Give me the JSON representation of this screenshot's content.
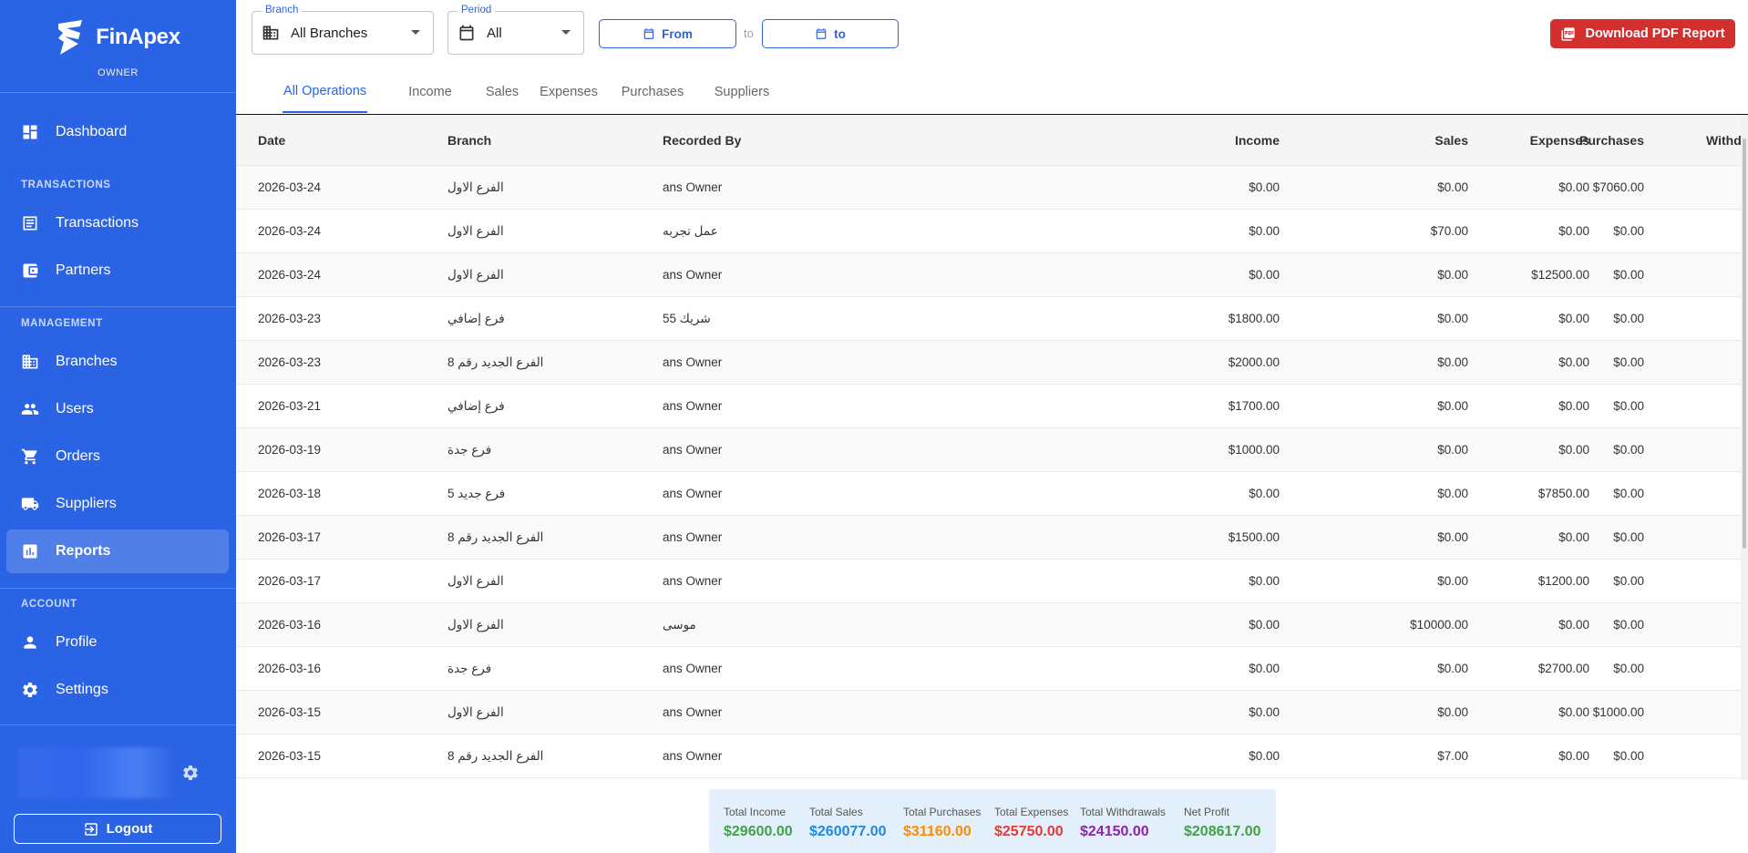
{
  "app": {
    "name": "FinApex",
    "role": "OWNER"
  },
  "sidebar": {
    "dashboard": "Dashboard",
    "section_transactions": "TRANSACTIONS",
    "transactions": "Transactions",
    "partners": "Partners",
    "section_management": "MANAGEMENT",
    "branches": "Branches",
    "users": "Users",
    "orders": "Orders",
    "suppliers": "Suppliers",
    "reports": "Reports",
    "section_account": "ACCOUNT",
    "profile": "Profile",
    "settings": "Settings",
    "logout": "Logout"
  },
  "filters": {
    "branch_label": "Branch",
    "branch_value": "All Branches",
    "period_label": "Period",
    "period_value": "All",
    "from_label": "From",
    "to_sep": "to",
    "to_label": "to",
    "download": "Download PDF Report"
  },
  "tabs": [
    "All Operations",
    "Income",
    "Sales",
    "Expenses",
    "Purchases",
    "Suppliers"
  ],
  "table": {
    "headers": {
      "date": "Date",
      "branch": "Branch",
      "recorded_by": "Recorded By",
      "income": "Income",
      "sales": "Sales",
      "purchases": "Purchases",
      "expenses": "Expenses",
      "withdrawals": "Withdra"
    },
    "rows": [
      {
        "date": "2026-03-24",
        "branch": "الفرع الاول",
        "recorded_by": "ans Owner",
        "income": "$0.00",
        "sales": "$0.00",
        "purchases": "$7060.00",
        "expenses": "$0.00",
        "withdrawals": "$"
      },
      {
        "date": "2026-03-24",
        "branch": "الفرع الاول",
        "recorded_by": "عمل تجربه",
        "income": "$0.00",
        "sales": "$70.00",
        "purchases": "$0.00",
        "expenses": "$0.00",
        "withdrawals": "$"
      },
      {
        "date": "2026-03-24",
        "branch": "الفرع الاول",
        "recorded_by": "ans Owner",
        "income": "$0.00",
        "sales": "$0.00",
        "purchases": "$0.00",
        "expenses": "$12500.00",
        "withdrawals": "$"
      },
      {
        "date": "2026-03-23",
        "branch": "فرع إضافي",
        "recorded_by": "شريك 55",
        "income": "$1800.00",
        "sales": "$0.00",
        "purchases": "$0.00",
        "expenses": "$0.00",
        "withdrawals": "$"
      },
      {
        "date": "2026-03-23",
        "branch": "الفرع الجديد رقم 8",
        "recorded_by": "ans Owner",
        "income": "$2000.00",
        "sales": "$0.00",
        "purchases": "$0.00",
        "expenses": "$0.00",
        "withdrawals": "$"
      },
      {
        "date": "2026-03-21",
        "branch": "فرع إضافي",
        "recorded_by": "ans Owner",
        "income": "$1700.00",
        "sales": "$0.00",
        "purchases": "$0.00",
        "expenses": "$0.00",
        "withdrawals": "$"
      },
      {
        "date": "2026-03-19",
        "branch": "فرع جدة",
        "recorded_by": "ans Owner",
        "income": "$1000.00",
        "sales": "$0.00",
        "purchases": "$0.00",
        "expenses": "$0.00",
        "withdrawals": "$"
      },
      {
        "date": "2026-03-18",
        "branch": "فرع جديد 5",
        "recorded_by": "ans Owner",
        "income": "$0.00",
        "sales": "$0.00",
        "purchases": "$0.00",
        "expenses": "$7850.00",
        "withdrawals": "$"
      },
      {
        "date": "2026-03-17",
        "branch": "الفرع الجديد رقم 8",
        "recorded_by": "ans Owner",
        "income": "$1500.00",
        "sales": "$0.00",
        "purchases": "$0.00",
        "expenses": "$0.00",
        "withdrawals": "$"
      },
      {
        "date": "2026-03-17",
        "branch": "الفرع الاول",
        "recorded_by": "ans Owner",
        "income": "$0.00",
        "sales": "$0.00",
        "purchases": "$0.00",
        "expenses": "$1200.00",
        "withdrawals": "$"
      },
      {
        "date": "2026-03-16",
        "branch": "الفرع الاول",
        "recorded_by": "موسى",
        "income": "$0.00",
        "sales": "$10000.00",
        "purchases": "$0.00",
        "expenses": "$0.00",
        "withdrawals": "$"
      },
      {
        "date": "2026-03-16",
        "branch": "فرع جدة",
        "recorded_by": "ans Owner",
        "income": "$0.00",
        "sales": "$0.00",
        "purchases": "$0.00",
        "expenses": "$2700.00",
        "withdrawals": "$"
      },
      {
        "date": "2026-03-15",
        "branch": "الفرع الاول",
        "recorded_by": "ans Owner",
        "income": "$0.00",
        "sales": "$0.00",
        "purchases": "$1000.00",
        "expenses": "$0.00",
        "withdrawals": "$"
      },
      {
        "date": "2026-03-15",
        "branch": "الفرع الجديد رقم 8",
        "recorded_by": "ans Owner",
        "income": "$0.00",
        "sales": "$7.00",
        "purchases": "$0.00",
        "expenses": "$0.00",
        "withdrawals": "$"
      }
    ]
  },
  "totals": [
    {
      "label": "Total Income",
      "value": "$29600.00",
      "color": "#43a047"
    },
    {
      "label": "Total Sales",
      "value": "$260077.00",
      "color": "#1e88e5"
    },
    {
      "label": "Total Purchases",
      "value": "$31160.00",
      "color": "#fb8c00"
    },
    {
      "label": "Total Expenses",
      "value": "$25750.00",
      "color": "#e53935"
    },
    {
      "label": "Total Withdrawals",
      "value": "$24150.00",
      "color": "#8e24aa"
    },
    {
      "label": "Net Profit",
      "value": "$208617.00",
      "color": "#43a047"
    }
  ],
  "colors": {
    "sidebar": "#2a63e3",
    "accent": "#2a63e3",
    "pdf": "#d32f2f"
  }
}
